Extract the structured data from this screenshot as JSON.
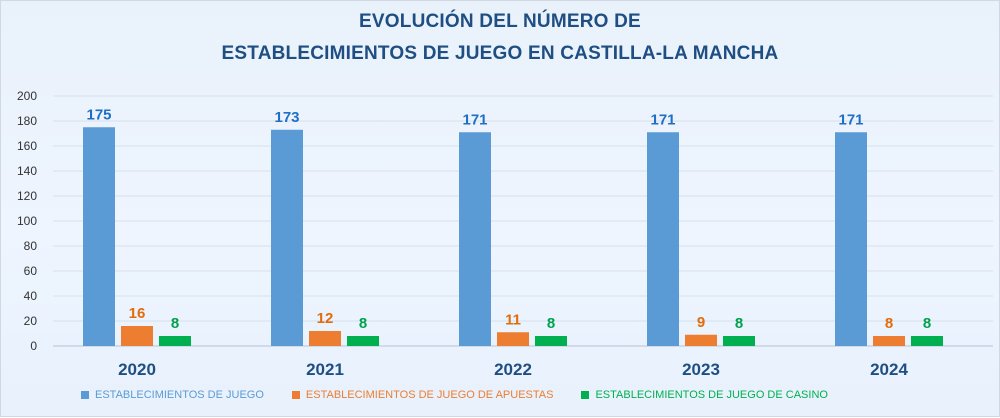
{
  "chart_data": {
    "type": "bar",
    "title_line1": "EVOLUCIÓN DEL NÚMERO DE",
    "title_line2": "ESTABLECIMIENTOS DE JUEGO EN CASTILLA-LA MANCHA",
    "categories": [
      "2020",
      "2021",
      "2022",
      "2023",
      "2024"
    ],
    "series": [
      {
        "name": "ESTABLECIMIENTOS DE JUEGO",
        "values": [
          175,
          173,
          171,
          171,
          171
        ],
        "color": "#5b9bd5"
      },
      {
        "name": "ESTABLECIMIENTOS DE JUEGO DE APUESTAS",
        "values": [
          16,
          12,
          11,
          9,
          8
        ],
        "color": "#ed7d31"
      },
      {
        "name": "ESTABLECIMIENTOS DE JUEGO DE CASINO",
        "values": [
          8,
          8,
          8,
          8,
          8
        ],
        "color": "#00b050"
      }
    ],
    "ylim": [
      0,
      200
    ],
    "yticks": [
      0,
      20,
      40,
      60,
      80,
      100,
      120,
      140,
      160,
      180,
      200
    ],
    "xlabel": "",
    "ylabel": "",
    "grid": true,
    "legend_position": "bottom",
    "label_colors": [
      "#1f6fc5",
      "#e36c0a",
      "#00a14b"
    ]
  }
}
